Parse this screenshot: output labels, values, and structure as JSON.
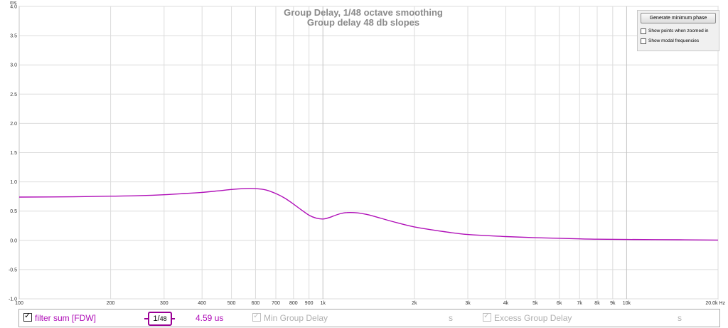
{
  "chart_data": {
    "type": "line",
    "title": "Group Delay, 1/48 octave smoothing",
    "subtitle": "Group delay 48 db slopes",
    "ylabel": "ms",
    "xlabel": "",
    "xscale": "log",
    "xlim": [
      100,
      20000
    ],
    "ylim": [
      -1.0,
      4.0
    ],
    "grid": true,
    "y_ticks": [
      -1.0,
      -0.5,
      0.0,
      0.5,
      1.0,
      1.5,
      2.0,
      2.5,
      3.0,
      3.5,
      4.0
    ],
    "y_tick_labels": [
      "-1.0",
      "-0.5",
      "0.0",
      "0.5",
      "1.0",
      "1.5",
      "2.0",
      "2.5",
      "3.0",
      "3.5",
      "4.0"
    ],
    "x_ticks": [
      100,
      200,
      300,
      400,
      500,
      600,
      700,
      800,
      900,
      1000,
      2000,
      3000,
      4000,
      5000,
      6000,
      7000,
      8000,
      9000,
      10000,
      20000
    ],
    "x_tick_labels": [
      "100",
      "200",
      "300",
      "400",
      "500",
      "600",
      "700",
      "800",
      "900",
      "1k",
      "2k",
      "3k",
      "4k",
      "5k",
      "6k",
      "7k",
      "8k",
      "9k",
      "10k",
      "20.0k Hz"
    ],
    "series": [
      {
        "name": "filter sum [FDW]",
        "color": "#b010b8",
        "x": [
          100,
          150,
          200,
          250,
          300,
          350,
          400,
          450,
          500,
          550,
          600,
          650,
          700,
          750,
          800,
          850,
          900,
          950,
          1000,
          1050,
          1100,
          1150,
          1200,
          1300,
          1400,
          1500,
          1700,
          2000,
          2500,
          3000,
          4000,
          5000,
          6000,
          7000,
          8000,
          10000,
          15000,
          20000
        ],
        "y": [
          0.74,
          0.745,
          0.755,
          0.765,
          0.78,
          0.8,
          0.82,
          0.845,
          0.87,
          0.885,
          0.885,
          0.86,
          0.8,
          0.72,
          0.62,
          0.52,
          0.43,
          0.38,
          0.365,
          0.39,
          0.43,
          0.46,
          0.475,
          0.47,
          0.44,
          0.4,
          0.32,
          0.23,
          0.15,
          0.1,
          0.065,
          0.045,
          0.035,
          0.025,
          0.02,
          0.015,
          0.01,
          0.005
        ]
      }
    ]
  },
  "controls": {
    "generate_min_phase": "Generate minimum phase",
    "show_points": "Show points when zoomed in",
    "show_modal": "Show modal frequencies"
  },
  "legend": {
    "trace_name": "filter sum [FDW]",
    "trace_color": "#b010b8",
    "smoothing_num": "1",
    "smoothing_den": "48",
    "value": "4.59 us",
    "min_group_delay": "Min Group Delay",
    "min_unit": "s",
    "excess_group_delay": "Excess Group Delay",
    "excess_unit": "s"
  }
}
